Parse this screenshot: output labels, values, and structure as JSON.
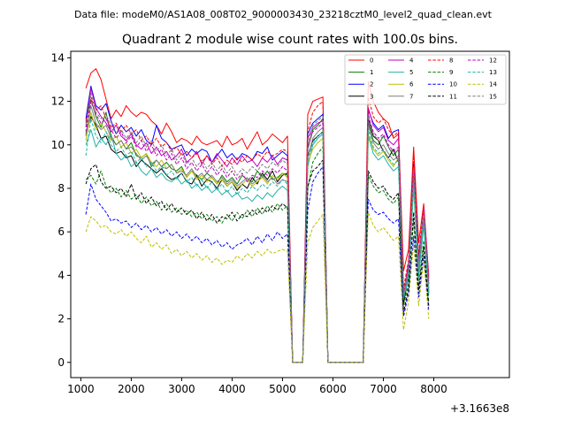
{
  "figure": {
    "suptitle": "Data file: modeM0/AS1A08_008T02_9000003430_23218cztM0_level2_quad_clean.evt"
  },
  "chart_data": {
    "type": "line",
    "title": "Quadrant 2 module wise count rates with 100.0s bins.",
    "xlabel": "",
    "ylabel": "",
    "x_offset_label": "+3.1663e8",
    "xlim": [
      800,
      9500
    ],
    "ylim": [
      -0.7,
      14.3
    ],
    "xticks": [
      1000,
      2000,
      3000,
      4000,
      5000,
      6000,
      7000,
      8000
    ],
    "yticks": [
      0,
      2,
      4,
      6,
      8,
      10,
      12,
      14
    ],
    "grid": false,
    "legend": {
      "placement": "top-right",
      "columns": 4
    },
    "gaps": [
      [
        5200,
        5600
      ],
      [
        6000,
        7200
      ]
    ],
    "series_defaults": {
      "x_start": 1100,
      "step": 100,
      "points_before_gap": 41,
      "gap1_zero_points": 3,
      "mid_block_points": 4,
      "gap2_zero_points": 8,
      "points_after_gap": 13
    },
    "series": [
      {
        "name": "0",
        "color": "#ff0000",
        "style": "solid",
        "pre": [
          12.6,
          13.3,
          13.5,
          13.0,
          12.1,
          11.2,
          11.6,
          11.3,
          11.8,
          11.5,
          11.3,
          11.5,
          11.4,
          11.1,
          10.9,
          10.5,
          11.0,
          10.6,
          10.1,
          10.3,
          10.2,
          10.0,
          10.4,
          10.1,
          10.0,
          10.1,
          10.2,
          9.9,
          10.4,
          10.0,
          10.1,
          10.3,
          9.8,
          10.2,
          10.6,
          10.0,
          10.2,
          10.5,
          10.3,
          10.1,
          10.4
        ],
        "mid": [
          11.4,
          12.0,
          12.1,
          12.2
        ],
        "post": [
          12.9,
          12.0,
          11.5,
          11.2,
          11.0,
          10.3,
          10.5,
          4.2,
          5.2,
          9.9,
          5.5,
          7.3,
          4.0
        ]
      },
      {
        "name": "1",
        "color": "#008000",
        "style": "solid",
        "pre": [
          11.0,
          12.1,
          11.3,
          10.8,
          11.5,
          10.4,
          10.0,
          10.2,
          9.8,
          10.1,
          9.5,
          9.4,
          9.6,
          9.0,
          9.3,
          9.0,
          9.2,
          8.9,
          8.8,
          9.0,
          8.5,
          8.8,
          8.6,
          8.4,
          8.7,
          8.5,
          8.2,
          8.6,
          8.3,
          8.5,
          8.2,
          8.6,
          8.4,
          8.3,
          8.8,
          8.5,
          8.8,
          8.4,
          8.5,
          8.7,
          8.6
        ],
        "mid": [
          9.8,
          10.7,
          10.9,
          11.2
        ],
        "post": [
          11.0,
          10.2,
          10.0,
          10.4,
          9.9,
          9.5,
          9.8,
          3.2,
          4.3,
          8.3,
          4.5,
          6.6,
          3.4
        ]
      },
      {
        "name": "2",
        "color": "#0000ff",
        "style": "solid",
        "pre": [
          11.2,
          12.7,
          11.8,
          11.6,
          11.9,
          11.1,
          10.5,
          10.9,
          10.6,
          10.8,
          10.4,
          10.7,
          10.2,
          10.0,
          10.9,
          10.3,
          10.1,
          9.8,
          9.9,
          10.0,
          9.5,
          9.8,
          9.6,
          9.8,
          9.7,
          9.2,
          9.5,
          9.8,
          9.4,
          9.6,
          9.3,
          9.6,
          9.5,
          9.3,
          9.7,
          9.6,
          9.9,
          9.3,
          9.5,
          9.7,
          9.5
        ],
        "mid": [
          10.5,
          11.0,
          11.2,
          11.4
        ],
        "post": [
          11.6,
          11.0,
          10.7,
          10.9,
          10.3,
          10.6,
          10.7,
          2.9,
          4.5,
          9.2,
          4.8,
          6.9,
          3.6
        ]
      },
      {
        "name": "3",
        "color": "#000000",
        "style": "solid",
        "pre": [
          10.5,
          11.3,
          10.9,
          10.3,
          10.4,
          9.8,
          9.6,
          9.7,
          9.4,
          9.5,
          9.0,
          9.3,
          9.1,
          8.9,
          8.7,
          8.9,
          8.6,
          8.4,
          8.5,
          8.7,
          8.3,
          8.2,
          8.6,
          8.1,
          8.4,
          8.3,
          8.0,
          8.4,
          8.1,
          8.3,
          7.9,
          8.2,
          8.0,
          8.5,
          8.2,
          8.7,
          8.4,
          8.8,
          8.3,
          8.6,
          8.7
        ],
        "mid": [
          9.5,
          10.2,
          10.4,
          10.6
        ],
        "post": [
          11.2,
          10.4,
          10.2,
          9.7,
          9.4,
          9.8,
          9.2,
          2.7,
          4.0,
          8.7,
          4.1,
          6.5,
          3.2
        ]
      },
      {
        "name": "4",
        "color": "#bf00bf",
        "style": "solid",
        "pre": [
          10.8,
          12.6,
          11.7,
          11.3,
          11.0,
          10.6,
          10.9,
          10.4,
          10.2,
          10.5,
          10.0,
          9.8,
          10.1,
          9.6,
          9.9,
          9.5,
          9.7,
          9.3,
          9.5,
          9.8,
          9.2,
          9.4,
          9.7,
          9.1,
          9.5,
          9.2,
          9.6,
          9.3,
          9.0,
          9.4,
          9.1,
          9.5,
          9.2,
          9.3,
          9.0,
          9.4,
          9.2,
          9.5,
          9.1,
          9.4,
          9.3
        ],
        "mid": [
          10.3,
          10.8,
          11.0,
          11.1
        ],
        "post": [
          11.7,
          10.9,
          10.6,
          10.8,
          10.2,
          10.0,
          10.3,
          3.1,
          4.6,
          9.0,
          4.4,
          7.1,
          3.9
        ]
      },
      {
        "name": "5",
        "color": "#20b2aa",
        "style": "solid",
        "pre": [
          10.0,
          10.7,
          9.9,
          10.3,
          10.0,
          10.5,
          9.6,
          9.3,
          9.5,
          9.0,
          9.2,
          8.8,
          8.6,
          8.9,
          8.5,
          8.7,
          8.4,
          8.3,
          8.5,
          8.2,
          8.4,
          8.0,
          8.2,
          7.9,
          8.1,
          7.8,
          8.0,
          7.7,
          7.9,
          7.6,
          7.8,
          7.5,
          7.6,
          7.4,
          7.7,
          7.5,
          7.8,
          7.6,
          7.9,
          8.1,
          7.9
        ],
        "mid": [
          9.0,
          10.0,
          10.3,
          10.5
        ],
        "post": [
          10.4,
          9.6,
          9.3,
          9.5,
          9.1,
          8.8,
          9.0,
          3.0,
          3.8,
          8.0,
          3.9,
          6.3,
          3.1
        ]
      },
      {
        "name": "6",
        "color": "#bfbf00",
        "style": "solid",
        "pre": [
          10.2,
          11.5,
          10.7,
          11.0,
          10.6,
          10.2,
          10.4,
          9.9,
          10.1,
          9.6,
          9.8,
          9.4,
          9.6,
          9.2,
          9.0,
          9.3,
          8.9,
          9.1,
          8.7,
          8.9,
          8.5,
          8.8,
          8.4,
          8.6,
          8.3,
          8.5,
          8.2,
          8.4,
          8.1,
          8.3,
          8.0,
          8.2,
          8.4,
          8.1,
          8.3,
          8.5,
          8.2,
          8.6,
          8.4,
          8.7,
          8.5
        ],
        "mid": [
          9.2,
          9.8,
          10.1,
          10.3
        ],
        "post": [
          10.5,
          9.8,
          9.5,
          9.7,
          9.3,
          9.0,
          9.4,
          3.3,
          4.2,
          8.2,
          4.3,
          6.7,
          3.5
        ]
      },
      {
        "name": "7",
        "color": "#7f7f7f",
        "style": "solid",
        "pre": [
          10.4,
          11.8,
          11.0,
          10.7,
          10.9,
          10.3,
          10.0,
          10.2,
          9.8,
          9.9,
          9.6,
          9.3,
          9.5,
          9.1,
          9.3,
          9.0,
          8.9,
          9.1,
          8.7,
          8.8,
          8.6,
          8.9,
          8.5,
          8.7,
          8.4,
          8.6,
          8.3,
          8.5,
          8.2,
          8.4,
          8.1,
          8.3,
          8.5,
          8.2,
          8.4,
          8.6,
          8.3,
          8.5,
          8.2,
          8.4,
          8.3
        ],
        "mid": [
          9.4,
          10.3,
          10.6,
          10.8
        ],
        "post": [
          10.9,
          10.1,
          9.8,
          10.0,
          9.6,
          9.3,
          9.5,
          3.0,
          4.1,
          8.5,
          4.2,
          6.8,
          3.3
        ]
      },
      {
        "name": "8",
        "color": "#ff0000",
        "style": "dashed",
        "pre": [
          11.1,
          12.2,
          11.6,
          11.8,
          11.2,
          10.8,
          11.0,
          10.6,
          10.9,
          10.5,
          10.7,
          10.2,
          10.4,
          10.0,
          10.3,
          9.9,
          10.1,
          9.7,
          9.9,
          9.5,
          9.7,
          9.4,
          9.6,
          9.2,
          9.5,
          9.1,
          9.4,
          9.0,
          9.3,
          9.1,
          9.4,
          9.2,
          9.5,
          9.3,
          9.6,
          9.4,
          9.7,
          9.5,
          9.6,
          9.8,
          9.7
        ],
        "mid": [
          10.6,
          11.5,
          11.8,
          12.0
        ],
        "post": [
          12.2,
          11.3,
          11.0,
          11.2,
          10.7,
          10.4,
          10.6,
          3.4,
          4.7,
          9.5,
          4.9,
          7.2,
          3.8
        ]
      },
      {
        "name": "9",
        "color": "#008000",
        "style": "dashed",
        "pre": [
          8.4,
          8.6,
          8.2,
          8.8,
          8.1,
          7.8,
          8.0,
          7.6,
          7.9,
          7.5,
          7.7,
          7.3,
          7.6,
          7.2,
          7.4,
          7.0,
          7.3,
          6.9,
          7.1,
          6.8,
          7.0,
          6.7,
          6.9,
          6.6,
          6.8,
          6.5,
          6.7,
          6.4,
          6.8,
          6.5,
          6.9,
          6.6,
          7.0,
          6.7,
          7.1,
          6.8,
          7.2,
          6.9,
          7.3,
          7.0,
          7.2
        ],
        "mid": [
          8.0,
          9.2,
          9.6,
          9.9
        ],
        "post": [
          8.6,
          8.1,
          7.8,
          7.9,
          7.5,
          7.3,
          7.6,
          2.6,
          3.6,
          6.5,
          3.5,
          5.6,
          2.8
        ]
      },
      {
        "name": "10",
        "color": "#0000ff",
        "style": "dashed",
        "pre": [
          6.8,
          8.2,
          7.5,
          7.2,
          6.9,
          6.5,
          6.6,
          6.4,
          6.5,
          6.2,
          6.4,
          6.1,
          6.3,
          6.0,
          6.2,
          5.9,
          6.1,
          5.8,
          6.0,
          5.7,
          5.9,
          5.6,
          5.8,
          5.5,
          5.7,
          5.4,
          5.6,
          5.3,
          5.5,
          5.2,
          5.4,
          5.5,
          5.7,
          5.4,
          5.8,
          5.5,
          5.9,
          5.6,
          6.0,
          5.7,
          5.9
        ],
        "mid": [
          7.0,
          8.3,
          8.7,
          9.0
        ],
        "post": [
          7.5,
          7.0,
          6.8,
          6.9,
          6.6,
          6.4,
          6.6,
          2.1,
          3.2,
          5.8,
          3.0,
          4.9,
          2.4
        ]
      },
      {
        "name": "11",
        "color": "#000000",
        "style": "dashed",
        "pre": [
          8.2,
          8.9,
          9.1,
          8.3,
          8.0,
          8.1,
          7.8,
          8.0,
          7.6,
          8.2,
          7.5,
          7.8,
          7.3,
          7.6,
          7.2,
          7.4,
          7.0,
          7.3,
          6.9,
          7.1,
          6.8,
          7.0,
          6.6,
          6.9,
          6.5,
          6.8,
          6.4,
          6.7,
          6.6,
          6.9,
          6.5,
          6.8,
          6.7,
          7.0,
          6.8,
          7.1,
          6.9,
          7.2,
          7.0,
          7.3,
          7.1
        ],
        "mid": [
          8.1,
          8.8,
          9.0,
          9.3
        ],
        "post": [
          8.8,
          8.3,
          8.0,
          8.1,
          7.7,
          7.5,
          7.8,
          2.3,
          3.4,
          6.9,
          3.3,
          5.3,
          2.6
        ]
      },
      {
        "name": "12",
        "color": "#bf00bf",
        "style": "dashed",
        "pre": [
          10.6,
          12.0,
          11.4,
          11.0,
          11.2,
          10.7,
          10.3,
          10.6,
          10.1,
          10.4,
          9.9,
          10.2,
          9.7,
          10.0,
          9.5,
          9.8,
          9.3,
          9.6,
          9.1,
          9.4,
          8.9,
          9.2,
          8.8,
          9.1,
          8.7,
          9.0,
          8.6,
          8.9,
          8.5,
          8.8,
          8.4,
          8.7,
          8.3,
          8.6,
          8.5,
          8.8,
          8.6,
          8.9,
          8.7,
          9.0,
          8.8
        ],
        "mid": [
          9.9,
          10.6,
          10.8,
          11.0
        ],
        "post": [
          11.4,
          10.6,
          10.3,
          10.5,
          10.0,
          9.7,
          9.9,
          3.2,
          4.4,
          8.8,
          4.6,
          7.0,
          3.7
        ]
      },
      {
        "name": "13",
        "color": "#20b2aa",
        "style": "dashed",
        "pre": [
          9.5,
          11.2,
          10.4,
          10.1,
          10.6,
          10.0,
          9.7,
          9.9,
          9.5,
          9.7,
          9.2,
          9.4,
          9.0,
          9.2,
          8.8,
          9.0,
          8.6,
          8.8,
          8.4,
          8.7,
          8.3,
          8.5,
          8.1,
          8.4,
          8.0,
          8.3,
          7.9,
          8.2,
          7.8,
          8.1,
          7.7,
          8.0,
          7.8,
          8.1,
          7.9,
          8.2,
          8.0,
          8.3,
          8.1,
          8.4,
          8.2
        ],
        "mid": [
          9.3,
          10.1,
          10.4,
          10.6
        ],
        "post": [
          10.7,
          9.9,
          9.6,
          9.8,
          9.4,
          9.1,
          9.3,
          2.9,
          4.0,
          8.3,
          4.0,
          6.5,
          3.2
        ]
      },
      {
        "name": "14",
        "color": "#bfbf00",
        "style": "dashed",
        "pre": [
          6.0,
          6.7,
          6.5,
          6.2,
          6.3,
          6.0,
          5.9,
          6.1,
          5.8,
          6.0,
          5.7,
          5.5,
          5.8,
          5.3,
          5.5,
          5.2,
          5.4,
          5.0,
          5.2,
          4.9,
          5.1,
          4.8,
          5.0,
          4.7,
          4.9,
          4.6,
          4.8,
          4.5,
          4.7,
          4.6,
          4.9,
          4.7,
          5.0,
          4.8,
          5.1,
          4.9,
          5.2,
          5.0,
          5.1,
          5.2,
          5.1
        ],
        "mid": [
          5.5,
          6.2,
          6.5,
          6.8
        ],
        "post": [
          6.9,
          6.3,
          6.0,
          6.2,
          5.9,
          5.6,
          5.8,
          1.5,
          2.8,
          5.5,
          2.6,
          4.7,
          2.0
        ]
      },
      {
        "name": "15",
        "color": "#7f7f7f",
        "style": "dashed",
        "pre": [
          10.9,
          12.4,
          11.5,
          11.2,
          11.4,
          10.9,
          10.5,
          10.7,
          10.3,
          10.6,
          10.1,
          10.4,
          9.9,
          10.2,
          9.7,
          10.0,
          9.5,
          9.8,
          9.3,
          9.6,
          9.1,
          9.4,
          9.0,
          9.3,
          8.9,
          9.2,
          8.8,
          9.1,
          8.7,
          9.0,
          8.6,
          8.9,
          8.7,
          9.0,
          8.8,
          9.1,
          8.9,
          9.2,
          9.0,
          9.3,
          9.1
        ],
        "mid": [
          10.0,
          10.9,
          11.1,
          11.3
        ],
        "post": [
          11.3,
          10.5,
          10.2,
          10.4,
          9.9,
          9.6,
          9.8,
          3.1,
          4.3,
          8.9,
          4.5,
          6.9,
          3.6
        ]
      }
    ]
  }
}
